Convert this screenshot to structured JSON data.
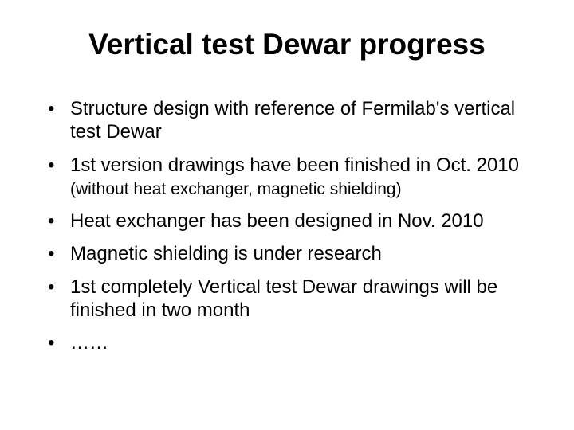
{
  "slide": {
    "title": "Vertical test Dewar progress",
    "title_fontsize": 37,
    "title_fontweight": "bold",
    "background_color": "#ffffff",
    "text_color": "#000000",
    "bullets": [
      {
        "text_main": "Structure design  with reference of Fermilab's vertical test Dewar",
        "text_sub": ""
      },
      {
        "text_main": "1st version drawings have been finished in Oct. 2010 ",
        "text_sub": "(without heat exchanger, magnetic shielding)"
      },
      {
        "text_main": "Heat exchanger has been designed in Nov. 2010",
        "text_sub": ""
      },
      {
        "text_main": "Magnetic shielding is under research",
        "text_sub": ""
      },
      {
        "text_main": "1st completely Vertical test Dewar drawings will be finished in two month",
        "text_sub": ""
      },
      {
        "text_main": "……",
        "text_sub": ""
      }
    ],
    "bullet_fontsize": 24,
    "sub_fontsize": 21
  }
}
